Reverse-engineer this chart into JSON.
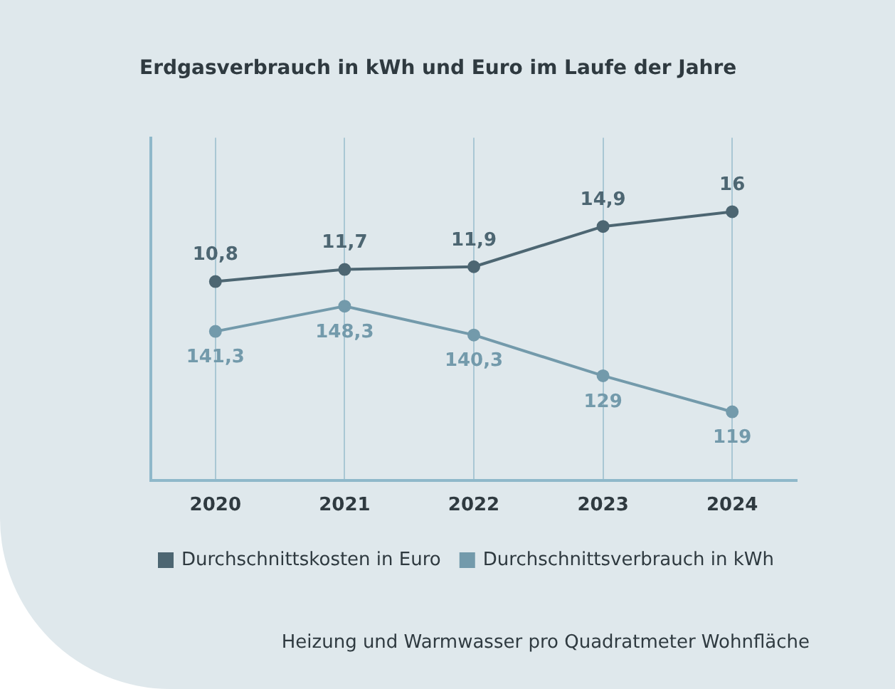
{
  "chart_data": {
    "type": "line",
    "title": "Erdgasverbrauch in kWh und Euro im Laufe der Jahre",
    "categories": [
      "2020",
      "2021",
      "2022",
      "2023",
      "2024"
    ],
    "series": [
      {
        "name": "Durchschnittskosten in Euro",
        "color": "#4d6672",
        "values": [
          10.8,
          11.7,
          11.9,
          14.9,
          16
        ],
        "value_labels": [
          "10,8",
          "11,7",
          "11,9",
          "14,9",
          "16"
        ]
      },
      {
        "name": "Durchschnittsverbrauch in kWh",
        "color": "#739aab",
        "values": [
          141.3,
          148.3,
          140.3,
          129,
          119
        ],
        "value_labels": [
          "141,3",
          "148,3",
          "140,3",
          "129",
          "119"
        ],
        "axis": "y2"
      }
    ],
    "ylim": [
      -4,
      21.5
    ],
    "y2lim": [
      100,
      195
    ],
    "grid": "x",
    "legend": "bottom",
    "marker": "circle",
    "line_style": "solid",
    "tick_labels": "x",
    "annotations": [
      "Heizung und Warmwasser pro Quadratmeter Wohnfläche"
    ]
  }
}
